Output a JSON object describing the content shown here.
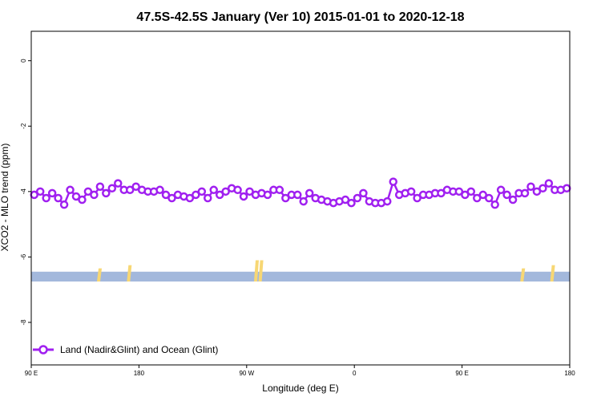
{
  "chart_data": {
    "type": "line",
    "title": "47.5S-42.5S January (Ver 10)   2015-01-01 to 2020-12-18",
    "xlabel": "Longitude (deg E)",
    "ylabel": "XCO2 - MLO trend (ppm)",
    "xlim": [
      90,
      450
    ],
    "ylim": [
      -9.3,
      0.9
    ],
    "x_ticks": [
      {
        "value": 90,
        "label": "90 E"
      },
      {
        "value": 162,
        "label": "180"
      },
      {
        "value": 234,
        "label": "90 W"
      },
      {
        "value": 306,
        "label": "0"
      },
      {
        "value": 378,
        "label": "90 E"
      },
      {
        "value": 450,
        "label": "180"
      }
    ],
    "y_ticks": [
      0,
      -2,
      -4,
      -6,
      -8
    ],
    "legend": {
      "label": "Land (Nadir&Glint) and Ocean (Glint)",
      "position": "bottom-left"
    },
    "colors": {
      "series": "#a020f0",
      "band": "#a3b8dc",
      "land": "#f7d774"
    },
    "series": [
      {
        "x": [
          92,
          96,
          100,
          104,
          108,
          112,
          116,
          120,
          124,
          128,
          132,
          136,
          140,
          144,
          148,
          152,
          156,
          160,
          164,
          168,
          172,
          176,
          180,
          184,
          188,
          192,
          196,
          200,
          204,
          208,
          212,
          216,
          220,
          224,
          228,
          232,
          236,
          240,
          244,
          248,
          252,
          256,
          260,
          264,
          268,
          272,
          276,
          280,
          284,
          288,
          292,
          296,
          300,
          304,
          308,
          312,
          316,
          320,
          324,
          328,
          332,
          336,
          340,
          344,
          348,
          352,
          356,
          360,
          364,
          368,
          372,
          376,
          380,
          384,
          388,
          392,
          396,
          400,
          404,
          408,
          412,
          416,
          420,
          424,
          428,
          432,
          436,
          440,
          444,
          448
        ],
        "values": [
          -4.1,
          -4.0,
          -4.2,
          -4.05,
          -4.2,
          -4.4,
          -3.95,
          -4.15,
          -4.25,
          -4.0,
          -4.1,
          -3.85,
          -4.05,
          -3.9,
          -3.75,
          -3.95,
          -3.95,
          -3.85,
          -3.95,
          -4.0,
          -4.0,
          -3.95,
          -4.1,
          -4.2,
          -4.1,
          -4.15,
          -4.2,
          -4.1,
          -4.0,
          -4.2,
          -3.95,
          -4.1,
          -4.0,
          -3.9,
          -3.95,
          -4.15,
          -4.0,
          -4.1,
          -4.05,
          -4.1,
          -3.95,
          -3.95,
          -4.2,
          -4.1,
          -4.1,
          -4.3,
          -4.05,
          -4.2,
          -4.25,
          -4.3,
          -4.35,
          -4.3,
          -4.25,
          -4.35,
          -4.2,
          -4.05,
          -4.3,
          -4.35,
          -4.35,
          -4.3,
          -3.7,
          -4.1,
          -4.05,
          -4.0,
          -4.2,
          -4.1,
          -4.1,
          -4.05,
          -4.05,
          -3.95,
          -4.0,
          -4.0,
          -4.1,
          -4.0,
          -4.2,
          -4.1,
          -4.2,
          -4.4,
          -3.95,
          -4.1,
          -4.25,
          -4.05,
          -4.05,
          -3.85,
          -4.0,
          -3.9,
          -3.75,
          -3.95,
          -3.95,
          -3.9
        ]
      }
    ],
    "band": {
      "y_top": -6.45,
      "y_bottom": -6.75
    },
    "land_marks": [
      {
        "x": 135,
        "height": 0.1
      },
      {
        "x": 155,
        "height": 0.2
      },
      {
        "x": 240,
        "height": 0.35
      },
      {
        "x": 243,
        "height": 0.35
      },
      {
        "x": 418,
        "height": 0.1
      },
      {
        "x": 438,
        "height": 0.2
      }
    ]
  }
}
